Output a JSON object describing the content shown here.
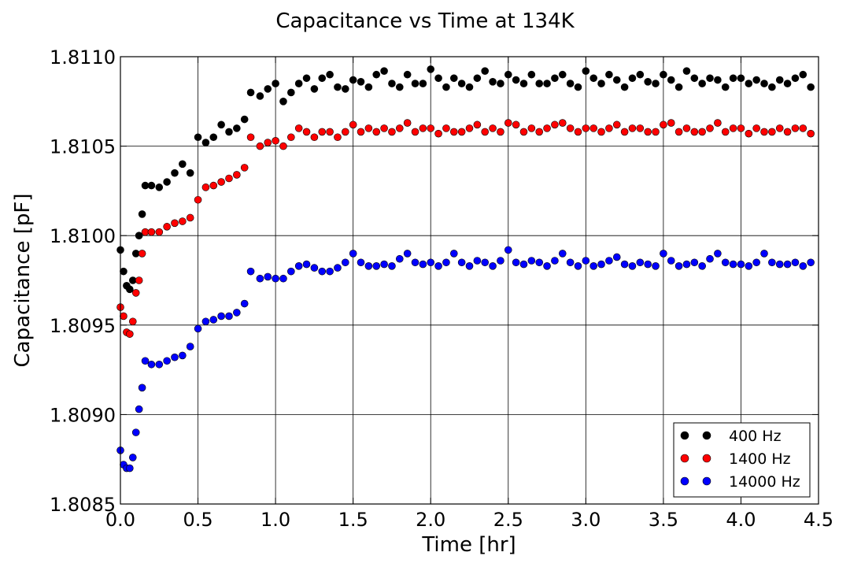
{
  "chart_data": {
    "type": "scatter",
    "title": "Capacitance vs Time at 134K",
    "xlabel": "Time [hr]",
    "ylabel": "Capacitance [pF]",
    "xlim": [
      0.0,
      4.5
    ],
    "ylim": [
      1.8085,
      1.811
    ],
    "x_ticks": [
      "0.0",
      "0.5",
      "1.0",
      "1.5",
      "2.0",
      "2.5",
      "3.0",
      "3.5",
      "4.0",
      "4.5"
    ],
    "y_ticks": [
      "1.8085",
      "1.8090",
      "1.8095",
      "1.8100",
      "1.8105",
      "1.8110"
    ],
    "grid": true,
    "legend_position": "bottom-right",
    "series": [
      {
        "name": "400 Hz",
        "color": "#000000",
        "x": [
          0.0,
          0.02,
          0.04,
          0.06,
          0.08,
          0.1,
          0.12,
          0.14,
          0.16,
          0.2,
          0.25,
          0.3,
          0.35,
          0.4,
          0.45,
          0.5,
          0.55,
          0.6,
          0.65,
          0.7,
          0.75,
          0.8,
          0.84,
          0.9,
          0.95,
          1.0,
          1.05,
          1.1,
          1.15,
          1.2,
          1.25,
          1.3,
          1.35,
          1.4,
          1.45,
          1.5,
          1.55,
          1.6,
          1.65,
          1.7,
          1.75,
          1.8,
          1.85,
          1.9,
          1.95,
          2.0,
          2.05,
          2.1,
          2.15,
          2.2,
          2.25,
          2.3,
          2.35,
          2.4,
          2.45,
          2.5,
          2.55,
          2.6,
          2.65,
          2.7,
          2.75,
          2.8,
          2.85,
          2.9,
          2.95,
          3.0,
          3.05,
          3.1,
          3.15,
          3.2,
          3.25,
          3.3,
          3.35,
          3.4,
          3.45,
          3.5,
          3.55,
          3.6,
          3.65,
          3.7,
          3.75,
          3.8,
          3.85,
          3.9,
          3.95,
          4.0,
          4.05,
          4.1,
          4.15,
          4.2,
          4.25,
          4.3,
          4.35,
          4.4,
          4.45
        ],
        "y": [
          1.80992,
          1.8098,
          1.80972,
          1.8097,
          1.80975,
          1.8099,
          1.81,
          1.81012,
          1.81028,
          1.81028,
          1.81027,
          1.8103,
          1.81035,
          1.8104,
          1.81035,
          1.81055,
          1.81052,
          1.81055,
          1.81062,
          1.81058,
          1.8106,
          1.81065,
          1.8108,
          1.81078,
          1.81082,
          1.81085,
          1.81075,
          1.8108,
          1.81085,
          1.81088,
          1.81082,
          1.81088,
          1.8109,
          1.81083,
          1.81082,
          1.81087,
          1.81086,
          1.81083,
          1.8109,
          1.81092,
          1.81085,
          1.81083,
          1.8109,
          1.81085,
          1.81085,
          1.81093,
          1.81088,
          1.81083,
          1.81088,
          1.81085,
          1.81083,
          1.81088,
          1.81092,
          1.81086,
          1.81085,
          1.8109,
          1.81087,
          1.81085,
          1.8109,
          1.81085,
          1.81085,
          1.81088,
          1.8109,
          1.81085,
          1.81083,
          1.81092,
          1.81088,
          1.81085,
          1.8109,
          1.81087,
          1.81083,
          1.81088,
          1.8109,
          1.81086,
          1.81085,
          1.8109,
          1.81087,
          1.81083,
          1.81092,
          1.81088,
          1.81085,
          1.81088,
          1.81087,
          1.81083,
          1.81088,
          1.81088,
          1.81085,
          1.81087,
          1.81085,
          1.81083,
          1.81087,
          1.81085,
          1.81088,
          1.8109,
          1.81083
        ]
      },
      {
        "name": "1400 Hz",
        "color": "#ff0000",
        "x": [
          0.0,
          0.02,
          0.04,
          0.06,
          0.08,
          0.1,
          0.12,
          0.14,
          0.16,
          0.2,
          0.25,
          0.3,
          0.35,
          0.4,
          0.45,
          0.5,
          0.55,
          0.6,
          0.65,
          0.7,
          0.75,
          0.8,
          0.84,
          0.9,
          0.95,
          1.0,
          1.05,
          1.1,
          1.15,
          1.2,
          1.25,
          1.3,
          1.35,
          1.4,
          1.45,
          1.5,
          1.55,
          1.6,
          1.65,
          1.7,
          1.75,
          1.8,
          1.85,
          1.9,
          1.95,
          2.0,
          2.05,
          2.1,
          2.15,
          2.2,
          2.25,
          2.3,
          2.35,
          2.4,
          2.45,
          2.5,
          2.55,
          2.6,
          2.65,
          2.7,
          2.75,
          2.8,
          2.85,
          2.9,
          2.95,
          3.0,
          3.05,
          3.1,
          3.15,
          3.2,
          3.25,
          3.3,
          3.35,
          3.4,
          3.45,
          3.5,
          3.55,
          3.6,
          3.65,
          3.7,
          3.75,
          3.8,
          3.85,
          3.9,
          3.95,
          4.0,
          4.05,
          4.1,
          4.15,
          4.2,
          4.25,
          4.3,
          4.35,
          4.4,
          4.45
        ],
        "y": [
          1.8096,
          1.80955,
          1.80946,
          1.80945,
          1.80952,
          1.80968,
          1.80975,
          1.8099,
          1.81002,
          1.81002,
          1.81002,
          1.81005,
          1.81007,
          1.81008,
          1.8101,
          1.8102,
          1.81027,
          1.81028,
          1.8103,
          1.81032,
          1.81034,
          1.81038,
          1.81055,
          1.8105,
          1.81052,
          1.81053,
          1.8105,
          1.81055,
          1.8106,
          1.81058,
          1.81055,
          1.81058,
          1.81058,
          1.81055,
          1.81058,
          1.81062,
          1.81058,
          1.8106,
          1.81058,
          1.8106,
          1.81058,
          1.8106,
          1.81063,
          1.81058,
          1.8106,
          1.8106,
          1.81057,
          1.8106,
          1.81058,
          1.81058,
          1.8106,
          1.81062,
          1.81058,
          1.8106,
          1.81058,
          1.81063,
          1.81062,
          1.81058,
          1.8106,
          1.81058,
          1.8106,
          1.81062,
          1.81063,
          1.8106,
          1.81058,
          1.8106,
          1.8106,
          1.81058,
          1.8106,
          1.81062,
          1.81058,
          1.8106,
          1.8106,
          1.81058,
          1.81058,
          1.81062,
          1.81063,
          1.81058,
          1.8106,
          1.81058,
          1.81058,
          1.8106,
          1.81063,
          1.81058,
          1.8106,
          1.8106,
          1.81057,
          1.8106,
          1.81058,
          1.81058,
          1.8106,
          1.81058,
          1.8106,
          1.8106,
          1.81057
        ]
      },
      {
        "name": "14000 Hz",
        "color": "#0000ff",
        "x": [
          0.0,
          0.02,
          0.04,
          0.06,
          0.08,
          0.1,
          0.12,
          0.14,
          0.16,
          0.2,
          0.25,
          0.3,
          0.35,
          0.4,
          0.45,
          0.5,
          0.55,
          0.6,
          0.65,
          0.7,
          0.75,
          0.8,
          0.84,
          0.9,
          0.95,
          1.0,
          1.05,
          1.1,
          1.15,
          1.2,
          1.25,
          1.3,
          1.35,
          1.4,
          1.45,
          1.5,
          1.55,
          1.6,
          1.65,
          1.7,
          1.75,
          1.8,
          1.85,
          1.9,
          1.95,
          2.0,
          2.05,
          2.1,
          2.15,
          2.2,
          2.25,
          2.3,
          2.35,
          2.4,
          2.45,
          2.5,
          2.55,
          2.6,
          2.65,
          2.7,
          2.75,
          2.8,
          2.85,
          2.9,
          2.95,
          3.0,
          3.05,
          3.1,
          3.15,
          3.2,
          3.25,
          3.3,
          3.35,
          3.4,
          3.45,
          3.5,
          3.55,
          3.6,
          3.65,
          3.7,
          3.75,
          3.8,
          3.85,
          3.9,
          3.95,
          4.0,
          4.05,
          4.1,
          4.15,
          4.2,
          4.25,
          4.3,
          4.35,
          4.4,
          4.45
        ],
        "y": [
          1.8088,
          1.80872,
          1.8087,
          1.8087,
          1.80876,
          1.8089,
          1.80903,
          1.80915,
          1.8093,
          1.80928,
          1.80928,
          1.8093,
          1.80932,
          1.80933,
          1.80938,
          1.80948,
          1.80952,
          1.80953,
          1.80955,
          1.80955,
          1.80957,
          1.80962,
          1.8098,
          1.80976,
          1.80977,
          1.80976,
          1.80976,
          1.8098,
          1.80983,
          1.80984,
          1.80982,
          1.8098,
          1.8098,
          1.80982,
          1.80985,
          1.8099,
          1.80985,
          1.80983,
          1.80983,
          1.80984,
          1.80983,
          1.80987,
          1.8099,
          1.80985,
          1.80984,
          1.80985,
          1.80983,
          1.80985,
          1.8099,
          1.80985,
          1.80983,
          1.80986,
          1.80985,
          1.80983,
          1.80986,
          1.80992,
          1.80985,
          1.80984,
          1.80986,
          1.80985,
          1.80983,
          1.80986,
          1.8099,
          1.80985,
          1.80983,
          1.80986,
          1.80983,
          1.80984,
          1.80986,
          1.80988,
          1.80984,
          1.80983,
          1.80985,
          1.80984,
          1.80983,
          1.8099,
          1.80986,
          1.80983,
          1.80984,
          1.80985,
          1.80983,
          1.80987,
          1.8099,
          1.80985,
          1.80984,
          1.80984,
          1.80983,
          1.80985,
          1.8099,
          1.80985,
          1.80984,
          1.80984,
          1.80985,
          1.80983,
          1.80985
        ]
      }
    ]
  }
}
